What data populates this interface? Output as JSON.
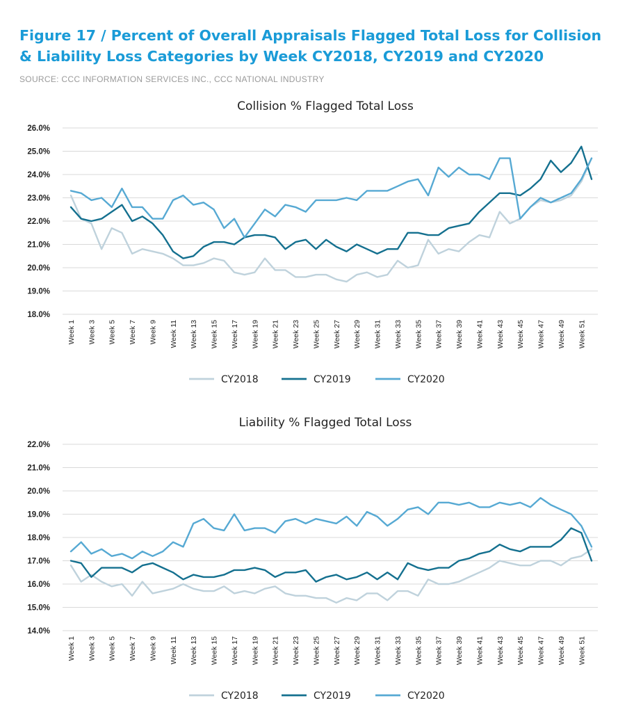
{
  "figure": {
    "title": "Figure 17 / Percent of Overall Appraisals Flagged Total Loss for Collision & Liability Loss Categories by Week CY2018, CY2019 and CY2020",
    "source": "SOURCE:  CCC INFORMATION SERVICES INC., CCC NATIONAL INDUSTRY"
  },
  "colors": {
    "title": "#1a9bd7",
    "CY2018": "#bfd2dc",
    "CY2019": "#14708f",
    "CY2020": "#56a9d3"
  },
  "chart_data": [
    {
      "type": "line",
      "title": "Collision % Flagged Total Loss",
      "x": [
        "Week 1",
        "Week 2",
        "Week 3",
        "Week 4",
        "Week 5",
        "Week 6",
        "Week 7",
        "Week 8",
        "Week 9",
        "Week 10",
        "Week 11",
        "Week 12",
        "Week 13",
        "Week 14",
        "Week 15",
        "Week 16",
        "Week 17",
        "Week 18",
        "Week 19",
        "Week 20",
        "Week 21",
        "Week 22",
        "Week 23",
        "Week 24",
        "Week 25",
        "Week 26",
        "Week 27",
        "Week 28",
        "Week 29",
        "Week 30",
        "Week 31",
        "Week 32",
        "Week 33",
        "Week 34",
        "Week 35",
        "Week 36",
        "Week 37",
        "Week 38",
        "Week 39",
        "Week 40",
        "Week 41",
        "Week 42",
        "Week 43",
        "Week 44",
        "Week 45",
        "Week 46",
        "Week 47",
        "Week 48",
        "Week 49",
        "Week 50",
        "Week 51",
        "Week 52"
      ],
      "x_tick_labels": [
        "Week 1",
        "Week 3",
        "Week 5",
        "Week 7",
        "Week 9",
        "Week 11",
        "Week 13",
        "Week 15",
        "Week 17",
        "Week 19",
        "Week 21",
        "Week 23",
        "Week 25",
        "Week 27",
        "Week 29",
        "Week 31",
        "Week 33",
        "Week 35",
        "Week 37",
        "Week 39",
        "Week 41",
        "Week 43",
        "Week 45",
        "Week 47",
        "Week 49",
        "Week 51"
      ],
      "y_tick_labels": [
        "18.0%",
        "19.0%",
        "20.0%",
        "21.0%",
        "22.0%",
        "23.0%",
        "24.0%",
        "25.0%",
        "26.0%"
      ],
      "ylim": [
        18,
        26
      ],
      "grid": true,
      "legend": "bottom",
      "series": [
        {
          "name": "CY2018",
          "values": [
            23.1,
            22.1,
            21.9,
            20.8,
            21.7,
            21.5,
            20.6,
            20.8,
            20.7,
            20.6,
            20.4,
            20.1,
            20.1,
            20.2,
            20.4,
            20.3,
            19.8,
            19.7,
            19.8,
            20.4,
            19.9,
            19.9,
            19.6,
            19.6,
            19.7,
            19.7,
            19.5,
            19.4,
            19.7,
            19.8,
            19.6,
            19.7,
            20.3,
            20.0,
            20.1,
            21.2,
            20.6,
            20.8,
            20.7,
            21.1,
            21.4,
            21.3,
            22.4,
            21.9,
            22.1,
            22.6,
            22.9,
            22.8,
            22.9,
            23.1,
            23.7,
            24.7
          ]
        },
        {
          "name": "CY2019",
          "values": [
            22.6,
            22.1,
            22.0,
            22.1,
            22.4,
            22.7,
            22.0,
            22.2,
            21.9,
            21.4,
            20.7,
            20.4,
            20.5,
            20.9,
            21.1,
            21.1,
            21.0,
            21.3,
            21.4,
            21.4,
            21.3,
            20.8,
            21.1,
            21.2,
            20.8,
            21.2,
            20.9,
            20.7,
            21.0,
            20.8,
            20.6,
            20.8,
            20.8,
            21.5,
            21.5,
            21.4,
            21.4,
            21.7,
            21.8,
            21.9,
            22.4,
            22.8,
            23.2,
            23.2,
            23.1,
            23.4,
            23.8,
            24.6,
            24.1,
            24.5,
            25.2,
            23.8
          ]
        },
        {
          "name": "CY2020",
          "values": [
            23.3,
            23.2,
            22.9,
            23.0,
            22.6,
            23.4,
            22.6,
            22.6,
            22.1,
            22.1,
            22.9,
            23.1,
            22.7,
            22.8,
            22.5,
            21.7,
            22.1,
            21.3,
            21.9,
            22.5,
            22.2,
            22.7,
            22.6,
            22.4,
            22.9,
            22.9,
            22.9,
            23.0,
            22.9,
            23.3,
            23.3,
            23.3,
            23.5,
            23.7,
            23.8,
            23.1,
            24.3,
            23.9,
            24.3,
            24.0,
            24.0,
            23.8,
            24.7,
            24.7,
            22.1,
            22.6,
            23.0,
            22.8,
            23.0,
            23.2,
            23.8,
            24.7
          ]
        }
      ]
    },
    {
      "type": "line",
      "title": "Liability % Flagged Total Loss",
      "x": [
        "Week 1",
        "Week 2",
        "Week 3",
        "Week 4",
        "Week 5",
        "Week 6",
        "Week 7",
        "Week 8",
        "Week 9",
        "Week 10",
        "Week 11",
        "Week 12",
        "Week 13",
        "Week 14",
        "Week 15",
        "Week 16",
        "Week 17",
        "Week 18",
        "Week 19",
        "Week 20",
        "Week 21",
        "Week 22",
        "Week 23",
        "Week 24",
        "Week 25",
        "Week 26",
        "Week 27",
        "Week 28",
        "Week 29",
        "Week 30",
        "Week 31",
        "Week 32",
        "Week 33",
        "Week 34",
        "Week 35",
        "Week 36",
        "Week 37",
        "Week 38",
        "Week 39",
        "Week 40",
        "Week 41",
        "Week 42",
        "Week 43",
        "Week 44",
        "Week 45",
        "Week 46",
        "Week 47",
        "Week 48",
        "Week 49",
        "Week 50",
        "Week 51",
        "Week 52"
      ],
      "x_tick_labels": [
        "Week 1",
        "Week 3",
        "Week 5",
        "Week 7",
        "Week 9",
        "Week 11",
        "Week 13",
        "Week 15",
        "Week 17",
        "Week 19",
        "Week 21",
        "Week 23",
        "Week 25",
        "Week 27",
        "Week 29",
        "Week 31",
        "Week 33",
        "Week 35",
        "Week 37",
        "Week 39",
        "Week 41",
        "Week 43",
        "Week 45",
        "Week 47",
        "Week 49",
        "Week 51"
      ],
      "y_tick_labels": [
        "14.0%",
        "15.0%",
        "16.0%",
        "17.0%",
        "18.0%",
        "19.0%",
        "20.0%",
        "21.0%",
        "22.0%"
      ],
      "ylim": [
        14,
        22
      ],
      "grid": true,
      "legend": "bottom",
      "series": [
        {
          "name": "CY2018",
          "values": [
            16.8,
            16.1,
            16.4,
            16.1,
            15.9,
            16.0,
            15.5,
            16.1,
            15.6,
            15.7,
            15.8,
            16.0,
            15.8,
            15.7,
            15.7,
            15.9,
            15.6,
            15.7,
            15.6,
            15.8,
            15.9,
            15.6,
            15.5,
            15.5,
            15.4,
            15.4,
            15.2,
            15.4,
            15.3,
            15.6,
            15.6,
            15.3,
            15.7,
            15.7,
            15.5,
            16.2,
            16.0,
            16.0,
            16.1,
            16.3,
            16.5,
            16.7,
            17.0,
            16.9,
            16.8,
            16.8,
            17.0,
            17.0,
            16.8,
            17.1,
            17.2,
            17.5
          ]
        },
        {
          "name": "CY2019",
          "values": [
            17.0,
            16.9,
            16.3,
            16.7,
            16.7,
            16.7,
            16.5,
            16.8,
            16.9,
            16.7,
            16.5,
            16.2,
            16.4,
            16.3,
            16.3,
            16.4,
            16.6,
            16.6,
            16.7,
            16.6,
            16.3,
            16.5,
            16.5,
            16.6,
            16.1,
            16.3,
            16.4,
            16.2,
            16.3,
            16.5,
            16.2,
            16.5,
            16.2,
            16.9,
            16.7,
            16.6,
            16.7,
            16.7,
            17.0,
            17.1,
            17.3,
            17.4,
            17.7,
            17.5,
            17.4,
            17.6,
            17.6,
            17.6,
            17.9,
            18.4,
            18.2,
            17.0
          ]
        },
        {
          "name": "CY2020",
          "values": [
            17.4,
            17.8,
            17.3,
            17.5,
            17.2,
            17.3,
            17.1,
            17.4,
            17.2,
            17.4,
            17.8,
            17.6,
            18.6,
            18.8,
            18.4,
            18.3,
            19.0,
            18.3,
            18.4,
            18.4,
            18.2,
            18.7,
            18.8,
            18.6,
            18.8,
            18.7,
            18.6,
            18.9,
            18.5,
            19.1,
            18.9,
            18.5,
            18.8,
            19.2,
            19.3,
            19.0,
            19.5,
            19.5,
            19.4,
            19.5,
            19.3,
            19.3,
            19.5,
            19.4,
            19.5,
            19.3,
            19.7,
            19.4,
            19.2,
            19.0,
            18.5,
            17.6
          ]
        }
      ]
    }
  ]
}
